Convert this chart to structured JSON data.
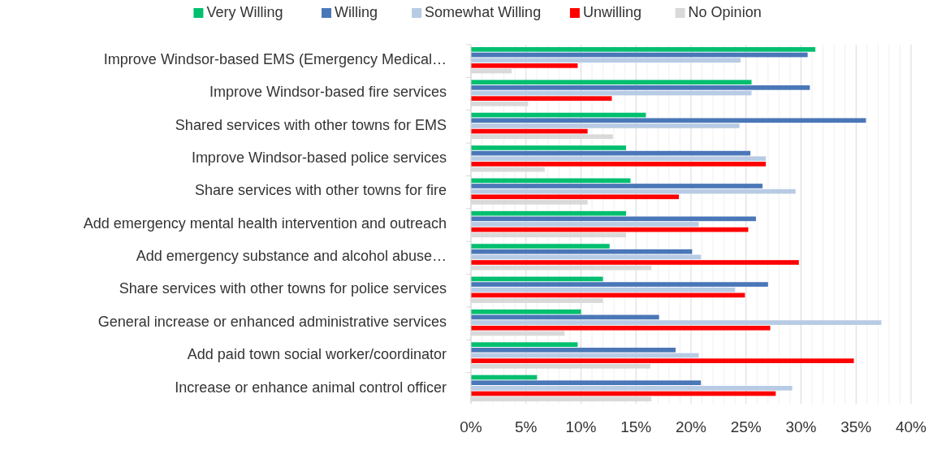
{
  "chart_data": {
    "type": "bar",
    "orientation": "horizontal",
    "categories": [
      "Improve Windsor-based EMS (Emergency Medical…",
      "Improve Windsor-based fire services",
      "Shared services with other towns for EMS",
      "Improve Windsor-based police services",
      "Share services with other towns for fire",
      "Add emergency mental health intervention and outreach",
      "Add emergency substance and alcohol abuse…",
      "Share services with other towns for police services",
      "General increase or enhanced administrative services",
      "Add paid town social worker/coordinator",
      "Increase or enhance animal control officer"
    ],
    "series": [
      {
        "name": "Very Willing",
        "color": "#00bf6f",
        "values": [
          31.3,
          25.5,
          15.9,
          14.1,
          14.5,
          14.1,
          12.6,
          12.0,
          10.0,
          9.7,
          6.0
        ]
      },
      {
        "name": "Willing",
        "color": "#4a77b8",
        "values": [
          30.6,
          30.8,
          35.9,
          25.4,
          26.5,
          25.9,
          20.1,
          27.0,
          17.1,
          18.6,
          20.9
        ]
      },
      {
        "name": "Somewhat Willing",
        "color": "#b8cbe4",
        "values": [
          24.5,
          25.5,
          24.4,
          26.8,
          29.5,
          20.7,
          20.9,
          24.0,
          37.3,
          20.7,
          29.2
        ]
      },
      {
        "name": "Unwilling",
        "color": "#ff0000",
        "values": [
          9.7,
          12.8,
          10.6,
          26.8,
          18.9,
          25.2,
          29.8,
          24.9,
          27.2,
          34.8,
          27.7
        ]
      },
      {
        "name": "No Opinion",
        "color": "#d9d9d9",
        "values": [
          3.7,
          5.2,
          12.9,
          6.7,
          10.6,
          14.1,
          16.4,
          12.0,
          8.5,
          16.3,
          16.4
        ]
      }
    ],
    "xlim": [
      0,
      40
    ],
    "xticks": [
      {
        "value": 0,
        "label": "0%"
      },
      {
        "value": 5,
        "label": "5%"
      },
      {
        "value": 10,
        "label": "10%"
      },
      {
        "value": 15,
        "label": "15%"
      },
      {
        "value": 20,
        "label": "20%"
      },
      {
        "value": 25,
        "label": "25%"
      },
      {
        "value": 30,
        "label": "30%"
      },
      {
        "value": 35,
        "label": "35%"
      },
      {
        "value": 40,
        "label": "40%"
      }
    ],
    "grid": "x",
    "legend": "top"
  }
}
